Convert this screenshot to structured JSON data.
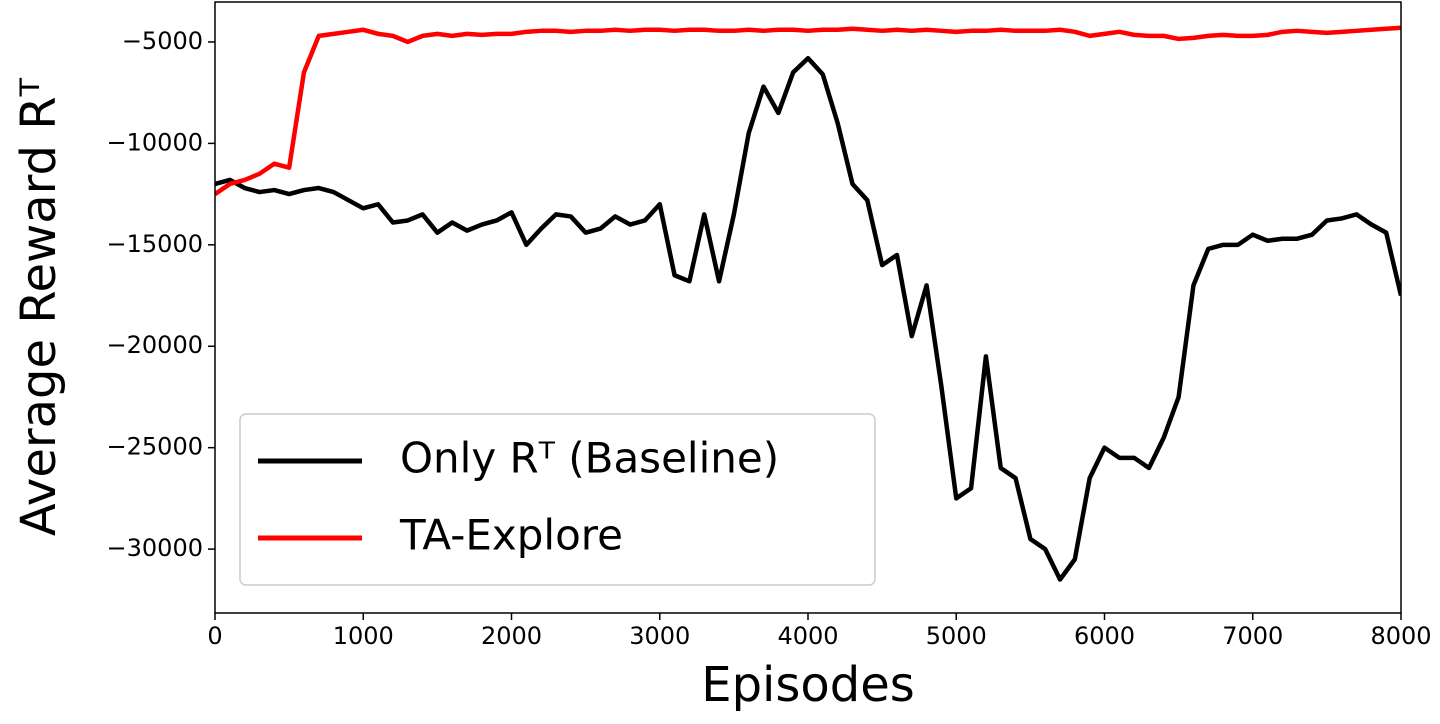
{
  "chart_data": {
    "type": "line",
    "xlabel": "Episodes",
    "ylabel": "Average Reward Rᵀ",
    "x": [
      0,
      100,
      200,
      300,
      400,
      500,
      600,
      700,
      800,
      900,
      1000,
      1100,
      1200,
      1300,
      1400,
      1500,
      1600,
      1700,
      1800,
      1900,
      2000,
      2100,
      2200,
      2300,
      2400,
      2500,
      2600,
      2700,
      2800,
      2900,
      3000,
      3100,
      3200,
      3300,
      3400,
      3500,
      3600,
      3700,
      3800,
      3900,
      4000,
      4100,
      4200,
      4300,
      4400,
      4500,
      4600,
      4700,
      4800,
      4900,
      5000,
      5100,
      5200,
      5300,
      5400,
      5500,
      5600,
      5700,
      5800,
      5900,
      6000,
      6100,
      6200,
      6300,
      6400,
      6500,
      6600,
      6700,
      6800,
      6900,
      7000,
      7100,
      7200,
      7300,
      7400,
      7500,
      7600,
      7700,
      7800,
      7900,
      8000
    ],
    "series": [
      {
        "name": "Only Rᵀ (Baseline)",
        "color": "#000000",
        "values": [
          -12000,
          -11800,
          -12200,
          -12400,
          -12300,
          -12500,
          -12300,
          -12200,
          -12400,
          -12800,
          -13200,
          -13000,
          -13900,
          -13800,
          -13500,
          -14400,
          -13900,
          -14300,
          -14000,
          -13800,
          -13400,
          -15000,
          -14200,
          -13500,
          -13600,
          -14400,
          -14200,
          -13600,
          -14000,
          -13800,
          -13000,
          -16500,
          -16800,
          -13500,
          -16800,
          -13500,
          -9500,
          -7200,
          -8500,
          -6500,
          -5800,
          -6600,
          -9000,
          -12000,
          -12800,
          -16000,
          -15500,
          -19500,
          -17000,
          -22000,
          -27500,
          -27000,
          -20500,
          -26000,
          -26500,
          -29500,
          -30000,
          -31500,
          -30500,
          -26500,
          -25000,
          -25500,
          -25500,
          -26000,
          -24500,
          -22500,
          -17000,
          -15200,
          -15000,
          -15000,
          -14500,
          -14800,
          -14700,
          -14700,
          -14500,
          -13800,
          -13700,
          -13500,
          -14000,
          -14400,
          -17500
        ]
      },
      {
        "name": "TA-Explore",
        "color": "#ff0000",
        "values": [
          -12500,
          -12000,
          -11800,
          -11500,
          -11000,
          -11200,
          -6500,
          -4700,
          -4600,
          -4500,
          -4400,
          -4600,
          -4700,
          -5000,
          -4700,
          -4600,
          -4700,
          -4600,
          -4650,
          -4600,
          -4600,
          -4500,
          -4450,
          -4450,
          -4500,
          -4450,
          -4450,
          -4400,
          -4450,
          -4400,
          -4400,
          -4450,
          -4400,
          -4400,
          -4450,
          -4450,
          -4400,
          -4450,
          -4400,
          -4400,
          -4450,
          -4400,
          -4400,
          -4350,
          -4400,
          -4450,
          -4400,
          -4450,
          -4400,
          -4450,
          -4500,
          -4450,
          -4450,
          -4400,
          -4450,
          -4450,
          -4450,
          -4400,
          -4500,
          -4700,
          -4600,
          -4500,
          -4650,
          -4700,
          -4700,
          -4850,
          -4800,
          -4700,
          -4650,
          -4700,
          -4700,
          -4650,
          -4500,
          -4450,
          -4500,
          -4550,
          -4500,
          -4450,
          -4400,
          -4350,
          -4300
        ]
      }
    ],
    "xlim": [
      0,
      8000
    ],
    "xticks": [
      0,
      1000,
      2000,
      3000,
      4000,
      5000,
      6000,
      7000,
      8000
    ],
    "ylim": [
      -33150,
      -3030
    ],
    "yticks": [
      -30000,
      -25000,
      -20000,
      -15000,
      -10000,
      -5000
    ],
    "legend": "lower-left",
    "grid": false
  }
}
